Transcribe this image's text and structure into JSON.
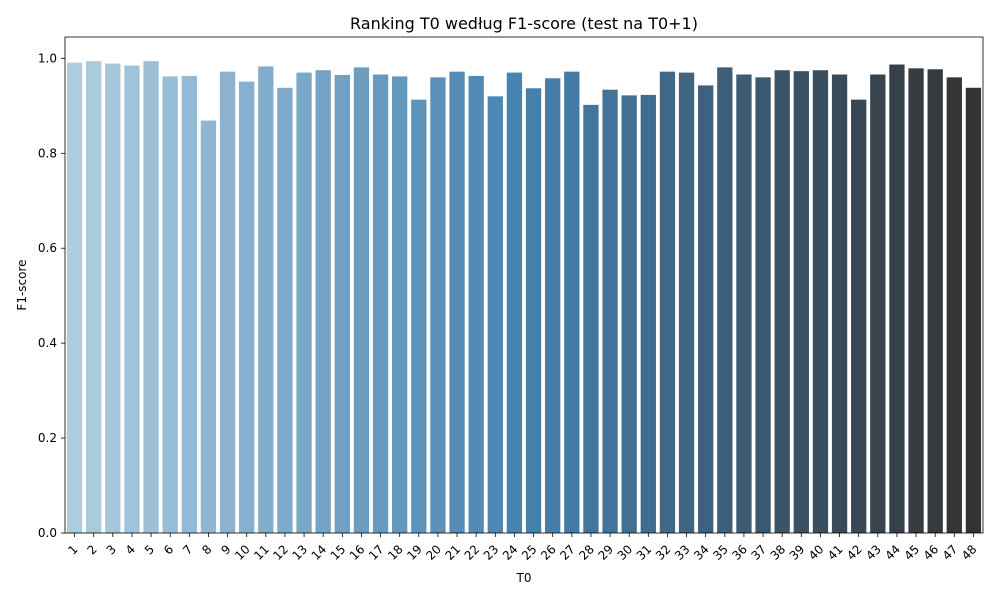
{
  "chart_data": {
    "type": "bar",
    "title": "Ranking T0 według F1-score (test na T0+1)",
    "xlabel": "T0",
    "ylabel": "F1-score",
    "ylim": [
      0,
      1.045
    ],
    "yticks": [
      "0.0",
      "0.2",
      "0.4",
      "0.6",
      "0.8",
      "1.0"
    ],
    "ytick_values": [
      0,
      0.2,
      0.4,
      0.6,
      0.8,
      1.0
    ],
    "grid": false,
    "palette": {
      "start": "#aecde0",
      "mid": "#4682b0",
      "end": "#333333"
    },
    "categories": [
      "1",
      "2",
      "3",
      "4",
      "5",
      "6",
      "7",
      "8",
      "9",
      "10",
      "11",
      "12",
      "13",
      "14",
      "15",
      "16",
      "17",
      "18",
      "19",
      "20",
      "21",
      "22",
      "23",
      "24",
      "25",
      "26",
      "27",
      "28",
      "29",
      "30",
      "31",
      "32",
      "33",
      "34",
      "35",
      "36",
      "37",
      "38",
      "39",
      "40",
      "41",
      "42",
      "43",
      "44",
      "45",
      "46",
      "47",
      "48"
    ],
    "values": [
      0.991,
      0.994,
      0.989,
      0.985,
      0.994,
      0.962,
      0.963,
      0.869,
      0.972,
      0.951,
      0.983,
      0.938,
      0.97,
      0.975,
      0.965,
      0.981,
      0.966,
      0.962,
      0.913,
      0.96,
      0.972,
      0.963,
      0.92,
      0.97,
      0.937,
      0.958,
      0.972,
      0.902,
      0.934,
      0.922,
      0.923,
      0.972,
      0.97,
      0.943,
      0.981,
      0.966,
      0.96,
      0.975,
      0.973,
      0.975,
      0.966,
      0.913,
      0.966,
      0.987,
      0.979,
      0.977,
      0.96,
      0.938
    ]
  }
}
